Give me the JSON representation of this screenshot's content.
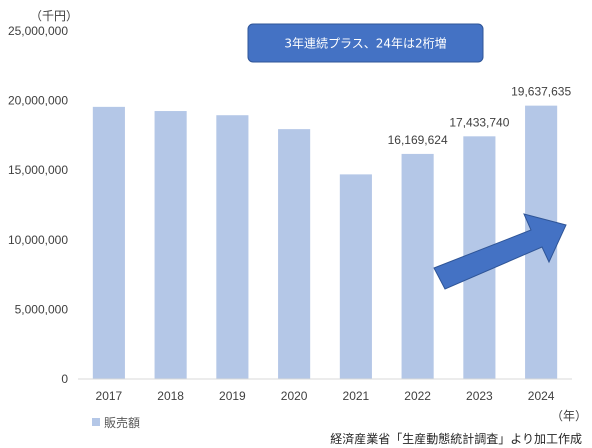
{
  "chart_data": {
    "type": "bar",
    "categories": [
      "2017",
      "2018",
      "2019",
      "2020",
      "2021",
      "2022",
      "2023",
      "2024"
    ],
    "series": [
      {
        "name": "販売額",
        "values": [
          19550000,
          19250000,
          18950000,
          17950000,
          14700000,
          16169624,
          17433740,
          19637635
        ]
      }
    ],
    "data_labels": [
      "",
      "",
      "",
      "",
      "",
      "16,169,624",
      "17,433,740",
      "19,637,635"
    ],
    "ylim": [
      0,
      25000000
    ],
    "yticks": [
      0,
      5000000,
      10000000,
      15000000,
      20000000,
      25000000
    ],
    "ytick_labels": [
      "0",
      "5,000,000",
      "10,000,000",
      "15,000,000",
      "20,000,000",
      "25,000,000"
    ],
    "y_unit": "（千円）",
    "x_unit": "（年）",
    "legend_position": "bottom-left",
    "grid": false,
    "bar_color": "#b4c7e7",
    "annotation": {
      "callout_text": "3年連続プラス、24年は2桁増",
      "callout_color": "#4472c4",
      "arrow_color": "#4472c4"
    }
  },
  "source_note": "経済産業省「生産動態統計調査」より加工作成"
}
